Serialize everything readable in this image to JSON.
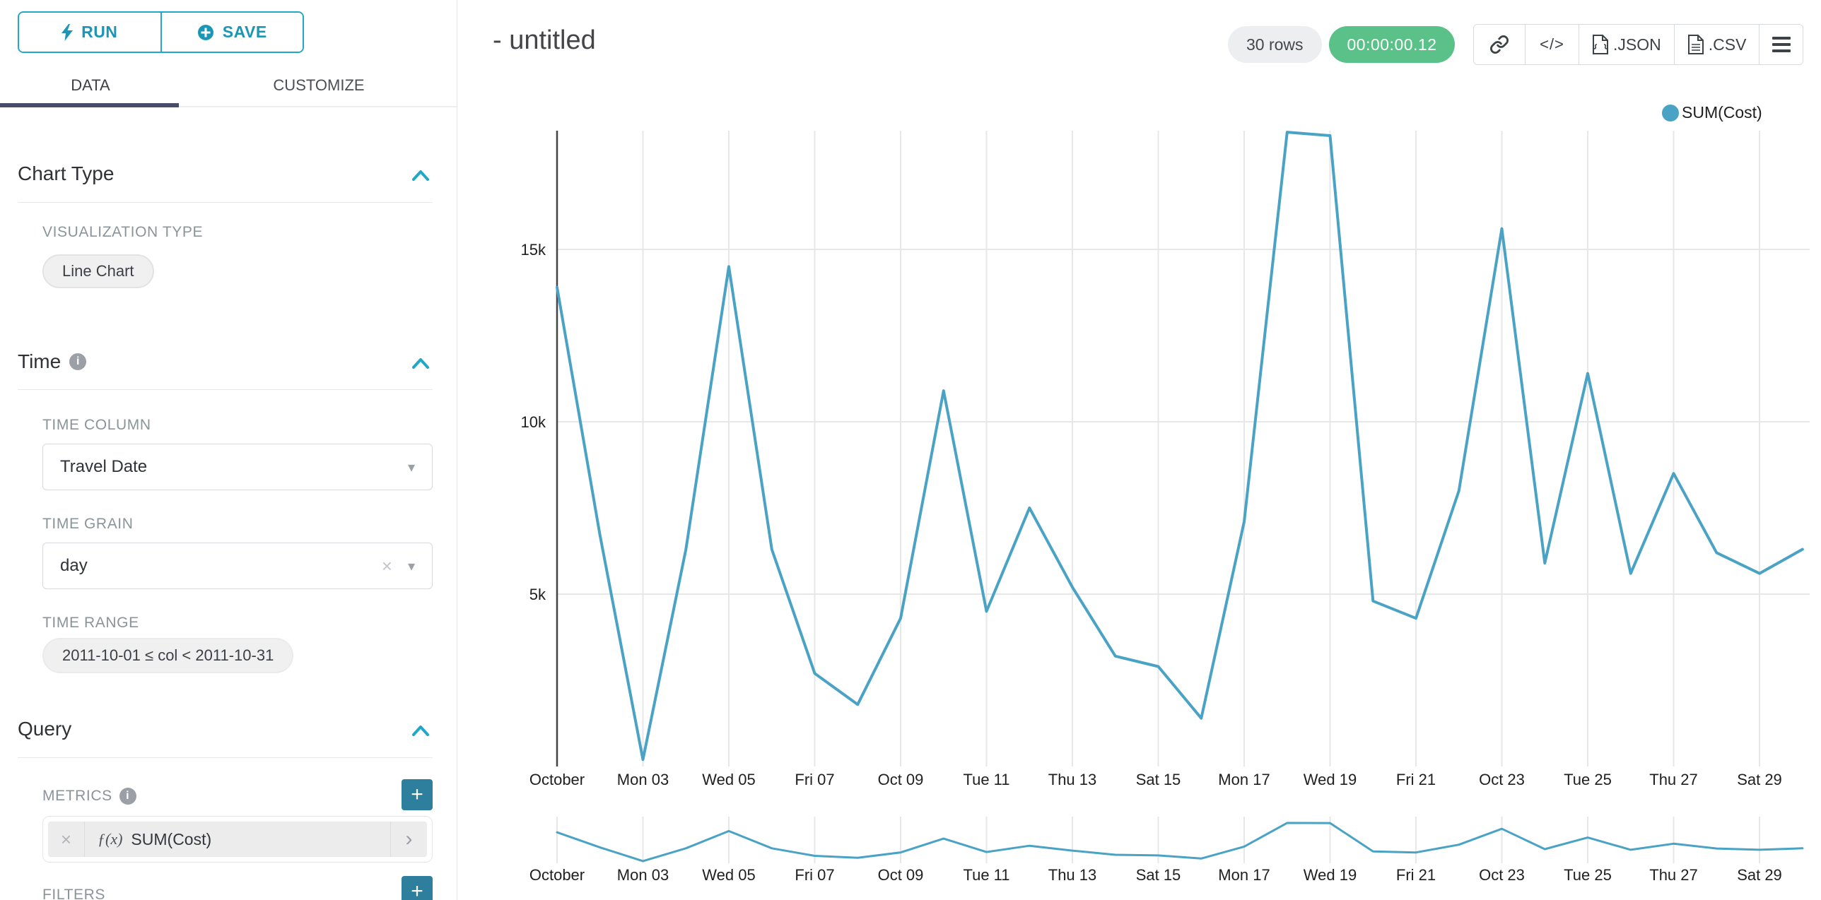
{
  "sidebar": {
    "run_label": "RUN",
    "save_label": "SAVE",
    "tabs": {
      "data": "DATA",
      "customize": "CUSTOMIZE"
    },
    "chart_type": {
      "title": "Chart Type",
      "viz_type_label": "VISUALIZATION TYPE",
      "viz_type_value": "Line Chart"
    },
    "time": {
      "title": "Time",
      "time_column_label": "TIME COLUMN",
      "time_column_value": "Travel Date",
      "time_grain_label": "TIME GRAIN",
      "time_grain_value": "day",
      "time_range_label": "TIME RANGE",
      "time_range_value": "2011-10-01 ≤ col < 2011-10-31"
    },
    "query": {
      "title": "Query",
      "metrics_label": "METRICS",
      "metric_fx": "ƒ(x)",
      "metric_value": "SUM(Cost)",
      "filters_label": "FILTERS"
    }
  },
  "header": {
    "title": "- untitled",
    "rows_badge": "30 rows",
    "timer_badge": "00:00:00.12",
    "json_label": ".JSON",
    "csv_label": ".CSV"
  },
  "legend": {
    "label": "SUM(Cost)"
  },
  "glyphs": {
    "caret_down": "▾",
    "clear_x": "×",
    "plus": "+",
    "info": "i",
    "embed_code": "</>",
    "metric_chevron": "›"
  },
  "colors": {
    "accent": "#1fa8c9",
    "line": "#4aa3c4",
    "timer_green": "#5ac189",
    "add_button_teal": "#2e7f9e",
    "tab_underline": "#494c68",
    "gridline": "#e7e7e7",
    "axis_line": "#444444"
  },
  "chart_data": {
    "type": "line",
    "title": "- untitled",
    "x": [
      "2011-10-01",
      "2011-10-02",
      "2011-10-03",
      "2011-10-04",
      "2011-10-05",
      "2011-10-06",
      "2011-10-07",
      "2011-10-08",
      "2011-10-09",
      "2011-10-10",
      "2011-10-11",
      "2011-10-12",
      "2011-10-13",
      "2011-10-14",
      "2011-10-15",
      "2011-10-16",
      "2011-10-17",
      "2011-10-18",
      "2011-10-19",
      "2011-10-20",
      "2011-10-21",
      "2011-10-22",
      "2011-10-23",
      "2011-10-24",
      "2011-10-25",
      "2011-10-26",
      "2011-10-27",
      "2011-10-28",
      "2011-10-29",
      "2011-10-30"
    ],
    "series": [
      {
        "name": "SUM(Cost)",
        "values": [
          13900,
          6700,
          200,
          6300,
          14500,
          6300,
          2700,
          1800,
          4300,
          10900,
          4500,
          7500,
          5200,
          3200,
          2900,
          1400,
          7100,
          18400,
          18300,
          4800,
          4300,
          8000,
          15600,
          5900,
          11400,
          5600,
          8500,
          6200,
          5600,
          6300
        ]
      }
    ],
    "x_tick_labels": [
      "October",
      "Mon 03",
      "Wed 05",
      "Fri 07",
      "Oct 09",
      "Tue 11",
      "Thu 13",
      "Sat 15",
      "Mon 17",
      "Wed 19",
      "Fri 21",
      "Oct 23",
      "Tue 25",
      "Thu 27",
      "Sat 29"
    ],
    "y_ticks": [
      5000,
      10000,
      15000
    ],
    "y_tick_labels": [
      "5k",
      "10k",
      "15k"
    ],
    "ylim": [
      0,
      18450
    ],
    "xlabel": "",
    "ylabel": "",
    "grid": true,
    "legend_position": "top-right",
    "has_range_selector_mini_chart": true
  }
}
